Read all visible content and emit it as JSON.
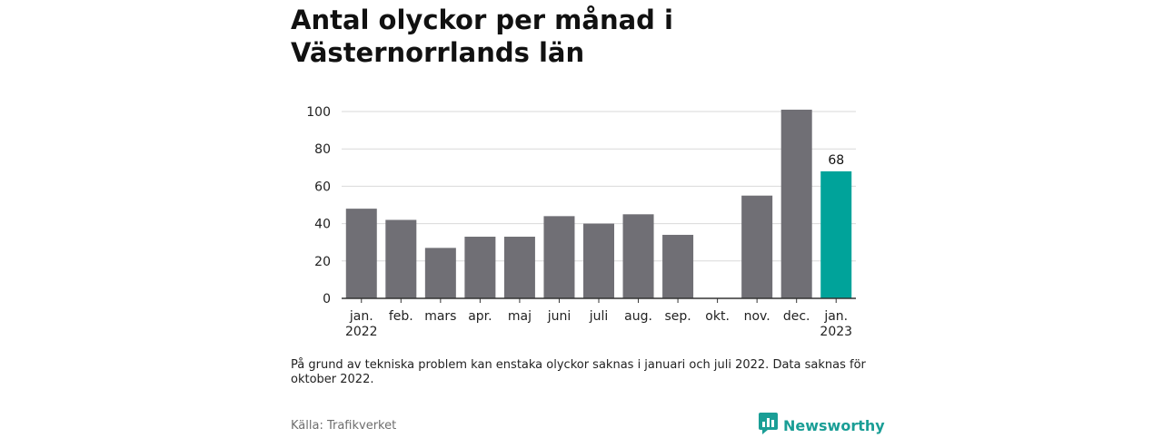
{
  "chart_data": {
    "type": "bar",
    "title": "Antal olyckor per månad i Västernorrlands län",
    "categories": [
      [
        "jan.",
        "2022"
      ],
      [
        "feb."
      ],
      [
        "mars"
      ],
      [
        "apr."
      ],
      [
        "maj"
      ],
      [
        "juni"
      ],
      [
        "juli"
      ],
      [
        "aug."
      ],
      [
        "sep."
      ],
      [
        "okt."
      ],
      [
        "nov."
      ],
      [
        "dec."
      ],
      [
        "jan.",
        "2023"
      ]
    ],
    "values": [
      48,
      42,
      27,
      33,
      33,
      44,
      40,
      45,
      34,
      null,
      55,
      101,
      68
    ],
    "highlight_index": 12,
    "highlight_label": "68",
    "yticks": [
      0,
      20,
      40,
      60,
      80,
      100
    ],
    "ylim": [
      0,
      103
    ],
    "grid": true,
    "colors": {
      "bar": "#706f75",
      "highlight": "#00a39a",
      "grid": "#d9d9d9",
      "axis": "#333333"
    }
  },
  "note": "På grund av tekniska problem kan enstaka olyckor saknas i januari och juli 2022. Data saknas för oktober 2022.",
  "source": "Källa: Trafikverket",
  "brand": {
    "name": "Newsworthy",
    "icon": "bar-chart-speech-bubble-icon",
    "color": "#1a9e96"
  }
}
